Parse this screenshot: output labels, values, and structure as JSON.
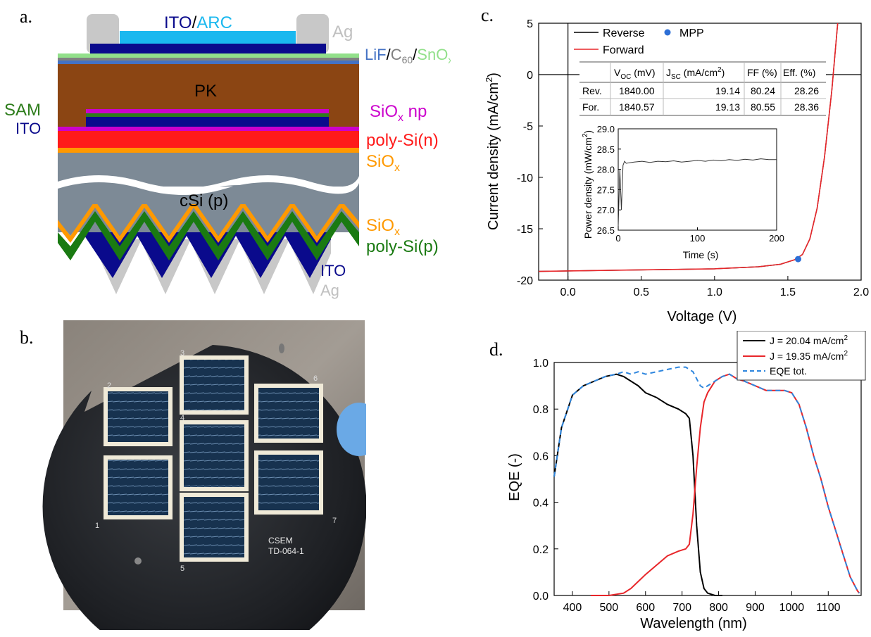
{
  "panel_a": {
    "letter": "a.",
    "top_label_ito": "ITO",
    "top_label_slash": "/",
    "top_label_arc": "ARC",
    "ag_top": "Ag",
    "lif": "LiF",
    "c60": "C",
    "c60_sub": "60",
    "sno": "SnO",
    "sno_sub": "x",
    "sam": "SAM",
    "ito_left": "ITO",
    "pk": "PK",
    "siox_np": "SiO",
    "siox_np_sub": "x",
    "siox_np_tail": " np",
    "poly_si_n": "poly-Si(n)",
    "siox1": "SiO",
    "siox1_sub": "x",
    "csi": "cSi (p)",
    "siox2": "SiO",
    "siox2_sub": "x",
    "poly_si_p": "poly-Si(p)",
    "ito_bottom": "ITO",
    "ag_bottom": "Ag",
    "colors": {
      "ito": "#0a0a8c",
      "arc": "#1ab8ef",
      "ag": "#c8c8c8",
      "lif": "#4472c4",
      "c60": "#808080",
      "sno": "#92e08a",
      "sam": "#2e7d1c",
      "pk": "#8b4513",
      "siox_np": "#cc00cc",
      "poly_n": "#ff1a1a",
      "siox": "#ff9900",
      "csi": "#7d8a96",
      "poly_p": "#1a7a12"
    }
  },
  "panel_b": {
    "letter": "b.",
    "cell_numbers": [
      "1",
      "2",
      "3",
      "4",
      "5",
      "6",
      "7"
    ],
    "wafer_label_line1": "CSEM",
    "wafer_label_line2": "TD-064-1"
  },
  "panel_c": {
    "letter": "c.",
    "chart_data": {
      "type": "line",
      "xlabel": "Voltage (V)",
      "ylabel": "Current density (mA/cm",
      "ylabel_sup": "2",
      "ylabel_tail": ")",
      "xlim": [
        -0.2,
        2.0
      ],
      "ylim": [
        -20,
        5
      ],
      "xticks": [
        "0.0",
        "0.5",
        "1.0",
        "1.5",
        "2.0"
      ],
      "yticks": [
        "5",
        "0",
        "-5",
        "-10",
        "-15",
        "-20"
      ],
      "legend": [
        "Reverse",
        "Forward",
        "MPP"
      ],
      "series": [
        {
          "name": "Reverse",
          "color": "#000000",
          "x": [
            -0.2,
            0.0,
            0.5,
            1.0,
            1.3,
            1.45,
            1.55,
            1.6,
            1.65,
            1.7,
            1.75,
            1.8,
            1.84
          ],
          "y": [
            -19.15,
            -19.1,
            -19.0,
            -18.9,
            -18.7,
            -18.45,
            -18.0,
            -17.5,
            -16.0,
            -13.0,
            -8.0,
            -1.5,
            5.0
          ]
        },
        {
          "name": "Forward",
          "color": "#e8262a",
          "x": [
            -0.2,
            0.0,
            0.5,
            1.0,
            1.3,
            1.45,
            1.55,
            1.6,
            1.65,
            1.7,
            1.75,
            1.8,
            1.84
          ],
          "y": [
            -19.15,
            -19.1,
            -19.0,
            -18.9,
            -18.7,
            -18.45,
            -18.0,
            -17.5,
            -16.0,
            -13.0,
            -8.0,
            -1.5,
            5.0
          ]
        }
      ],
      "mpp": {
        "x": 1.57,
        "y": -17.95,
        "color": "#2d6fd6"
      },
      "table": {
        "headers": [
          "",
          "V",
          "J",
          "FF (%)",
          "Eff. (%)"
        ],
        "header_subs": [
          "",
          "OC",
          "SC",
          "",
          ""
        ],
        "header_tails": [
          "",
          " (mV)",
          " (mA/cm",
          "",
          ""
        ],
        "jsc_sup": "2",
        "jsc_close": ")",
        "rows": [
          [
            "Rev.",
            "1840.00",
            "19.14",
            "80.24",
            "28.26"
          ],
          [
            "For.",
            "1840.57",
            "19.13",
            "80.55",
            "28.36"
          ]
        ]
      },
      "inset": {
        "xlabel": "Time (s)",
        "ylabel": "Power density (mW/cm",
        "ylabel_sup": "2",
        "ylabel_tail": ")",
        "xlim": [
          0,
          200
        ],
        "ylim": [
          26.5,
          29.0
        ],
        "xticks": [
          "0",
          "100",
          "200"
        ],
        "yticks": [
          "29.0",
          "28.5",
          "28.0",
          "27.5",
          "27.0",
          "26.5"
        ],
        "x": [
          0,
          2,
          4,
          6,
          8,
          10,
          20,
          30,
          40,
          50,
          60,
          70,
          80,
          90,
          100,
          110,
          120,
          130,
          140,
          150,
          160,
          170,
          180,
          190,
          200
        ],
        "y": [
          26.6,
          28.0,
          27.0,
          28.1,
          28.2,
          28.15,
          28.18,
          28.2,
          28.17,
          28.2,
          28.19,
          28.21,
          28.18,
          28.2,
          28.22,
          28.2,
          28.23,
          28.21,
          28.24,
          28.22,
          28.25,
          28.23,
          28.26,
          28.24,
          28.24
        ]
      }
    }
  },
  "panel_d": {
    "letter": "d.",
    "chart_data": {
      "type": "line",
      "xlabel": "Wavelength (nm)",
      "ylabel": "EQE (-)",
      "xlim": [
        350,
        1190
      ],
      "ylim": [
        0,
        1.0
      ],
      "xticks": [
        "400",
        "500",
        "600",
        "700",
        "800",
        "900",
        "1000",
        "1100"
      ],
      "yticks": [
        "1.0",
        "0.8",
        "0.6",
        "0.4",
        "0.2",
        "0.0"
      ],
      "series": [
        {
          "name": "J = 20.04 mA/cm",
          "sup": "2",
          "color": "#000000",
          "x": [
            350,
            370,
            400,
            430,
            460,
            490,
            520,
            540,
            560,
            580,
            600,
            630,
            660,
            690,
            710,
            720,
            730,
            740,
            750,
            760,
            770,
            790,
            810
          ],
          "y": [
            0.51,
            0.72,
            0.86,
            0.9,
            0.92,
            0.94,
            0.95,
            0.94,
            0.92,
            0.9,
            0.87,
            0.85,
            0.82,
            0.8,
            0.78,
            0.76,
            0.6,
            0.3,
            0.1,
            0.03,
            0.01,
            0.0,
            0.0
          ]
        },
        {
          "name": "J = 19.35 mA/cm",
          "sup": "2",
          "color": "#e8262a",
          "x": [
            450,
            500,
            540,
            560,
            580,
            600,
            630,
            660,
            690,
            710,
            720,
            730,
            740,
            750,
            760,
            770,
            790,
            810,
            830,
            850,
            870,
            900,
            930,
            960,
            980,
            1000,
            1020,
            1040,
            1060,
            1080,
            1100,
            1120,
            1140,
            1160,
            1180,
            1185
          ],
          "y": [
            0.0,
            0.0,
            0.01,
            0.03,
            0.06,
            0.09,
            0.13,
            0.17,
            0.19,
            0.2,
            0.22,
            0.35,
            0.55,
            0.72,
            0.83,
            0.87,
            0.92,
            0.94,
            0.95,
            0.93,
            0.92,
            0.9,
            0.88,
            0.88,
            0.88,
            0.87,
            0.82,
            0.72,
            0.6,
            0.5,
            0.38,
            0.28,
            0.18,
            0.08,
            0.02,
            0.01
          ]
        },
        {
          "name": "EQE tot.",
          "color": "#2e86de",
          "x": [
            350,
            370,
            400,
            430,
            460,
            490,
            520,
            540,
            560,
            580,
            600,
            630,
            660,
            690,
            710,
            730,
            750,
            760,
            770,
            790,
            810,
            830,
            850,
            870,
            900,
            930,
            960,
            980,
            1000,
            1020,
            1040,
            1060,
            1080,
            1100,
            1120,
            1140,
            1160,
            1180,
            1185
          ],
          "y": [
            0.51,
            0.72,
            0.86,
            0.9,
            0.92,
            0.94,
            0.95,
            0.96,
            0.95,
            0.96,
            0.95,
            0.96,
            0.97,
            0.98,
            0.98,
            0.96,
            0.9,
            0.89,
            0.9,
            0.92,
            0.94,
            0.95,
            0.93,
            0.92,
            0.9,
            0.88,
            0.88,
            0.88,
            0.87,
            0.82,
            0.72,
            0.6,
            0.5,
            0.38,
            0.28,
            0.18,
            0.08,
            0.02,
            0.01
          ]
        }
      ],
      "legend_placement": "top-right"
    }
  }
}
